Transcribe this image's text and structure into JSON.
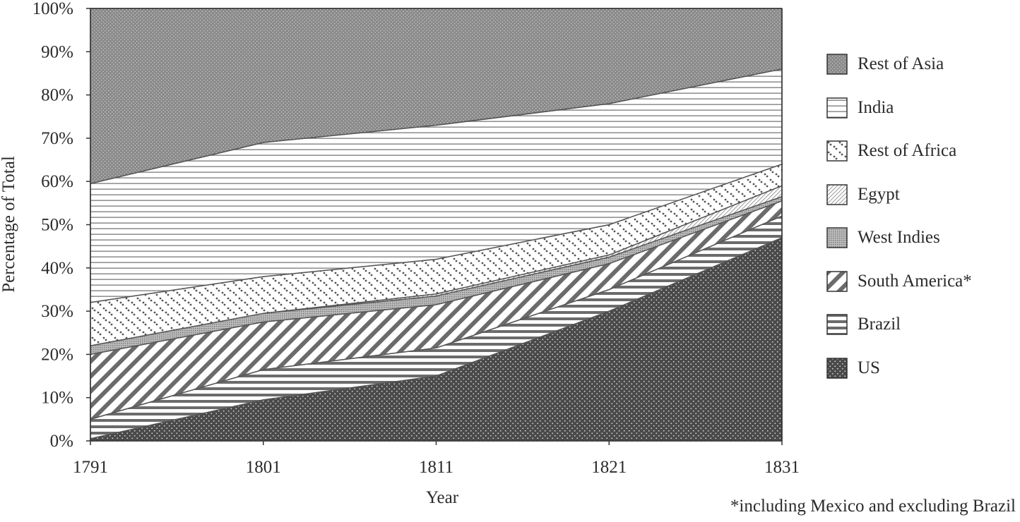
{
  "chart_data": {
    "type": "area",
    "stacked": true,
    "normalized_percent": true,
    "x": [
      1791,
      1801,
      1811,
      1821,
      1831
    ],
    "xlabel": "Year",
    "ylabel": "Percentage of Total",
    "ylim": [
      0,
      100
    ],
    "yticks": [
      "0%",
      "10%",
      "20%",
      "30%",
      "40%",
      "50%",
      "60%",
      "70%",
      "80%",
      "90%",
      "100%"
    ],
    "xticks": [
      "1791",
      "1801",
      "1811",
      "1821",
      "1831"
    ],
    "legend_position": "right",
    "series": [
      {
        "name": "US",
        "pattern": "dense-dots",
        "values": [
          0.5,
          9.5,
          15,
          30,
          47
        ]
      },
      {
        "name": "Brazil",
        "pattern": "horizontal-bars",
        "values": [
          4.5,
          7,
          6.5,
          5,
          5
        ]
      },
      {
        "name": "South America*",
        "pattern": "diagonal-stripes",
        "values": [
          15,
          11,
          10,
          6,
          3.5
        ]
      },
      {
        "name": "West Indies",
        "pattern": "fine-grid",
        "values": [
          2,
          2,
          2,
          1.5,
          1
        ]
      },
      {
        "name": "Egypt",
        "pattern": "light-diagonal",
        "values": [
          0,
          0,
          0.5,
          0.5,
          2.5
        ]
      },
      {
        "name": "Rest of Africa",
        "pattern": "sparse-dots",
        "values": [
          10,
          8.5,
          8,
          7,
          5
        ]
      },
      {
        "name": "India",
        "pattern": "horizontal-lines",
        "values": [
          27.5,
          31,
          31,
          28,
          22
        ]
      },
      {
        "name": "Rest of Asia",
        "pattern": "gray-dots",
        "values": [
          40.5,
          31,
          27,
          22,
          14
        ]
      }
    ],
    "legend_order": [
      "Rest of Asia",
      "India",
      "Rest of Africa",
      "Egypt",
      "West Indies",
      "South America*",
      "Brazil",
      "US"
    ],
    "footnote": "*including Mexico and excluding Brazil"
  }
}
